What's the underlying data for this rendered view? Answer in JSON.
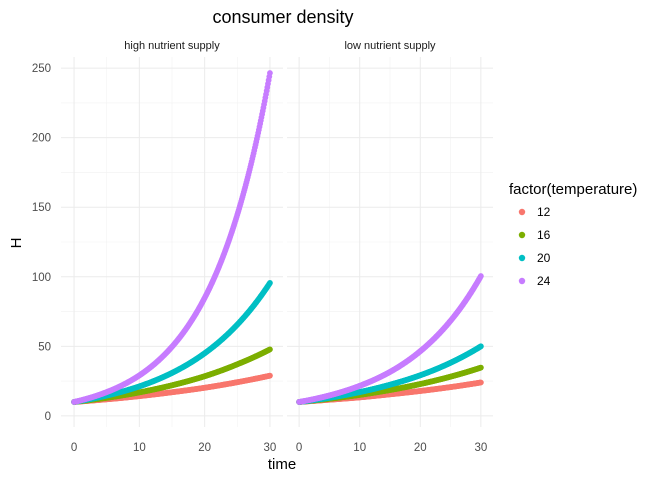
{
  "chart_data": {
    "type": "scatter",
    "title": "consumer density",
    "xlabel": "time",
    "ylabel": "H",
    "xlim": [
      -2,
      32
    ],
    "ylim": [
      -8,
      258
    ],
    "xticks": [
      0,
      10,
      20,
      30
    ],
    "yticks": [
      0,
      50,
      100,
      150,
      200,
      250
    ],
    "grid": true,
    "legend_title": "factor(temperature)",
    "legend_position": "right",
    "series_meta": [
      {
        "name": "12",
        "color": "#F8766D",
        "rate": 0.0353
      },
      {
        "name": "16",
        "color": "#7CAE00",
        "rate": 0.0522
      },
      {
        "name": "20",
        "color": "#00BFC4",
        "rate": 0.0753
      },
      {
        "name": "24",
        "color": "#C77CFF",
        "rate": 0.1068
      }
    ],
    "panels": [
      {
        "label": "high nutrient supply",
        "series": [
          {
            "name": "12",
            "x": [
              0,
              5,
              10,
              15,
              20,
              25,
              30
            ],
            "y": [
              10,
              11.9,
              14.2,
              17.0,
              20.2,
              24.2,
              28.9
            ]
          },
          {
            "name": "16",
            "x": [
              0,
              5,
              10,
              15,
              20,
              25,
              30
            ],
            "y": [
              10,
              13.0,
              16.9,
              22.0,
              28.5,
              37.1,
              47.8
            ]
          },
          {
            "name": "20",
            "x": [
              0,
              5,
              10,
              15,
              20,
              25,
              30
            ],
            "y": [
              10,
              14.6,
              21.2,
              30.9,
              45.0,
              65.6,
              95.6
            ]
          },
          {
            "name": "24",
            "x": [
              0,
              5,
              10,
              15,
              20,
              25,
              30
            ],
            "y": [
              10,
              17.1,
              29.1,
              49.7,
              84.8,
              144.6,
              246.5
            ]
          }
        ]
      },
      {
        "label": "low nutrient supply",
        "series": [
          {
            "name": "12",
            "x": [
              0,
              5,
              10,
              15,
              20,
              25,
              30
            ],
            "y": [
              10,
              11.6,
              13.3,
              15.5,
              17.9,
              20.7,
              24.0
            ]
          },
          {
            "name": "16",
            "x": [
              0,
              5,
              10,
              15,
              20,
              25,
              30
            ],
            "y": [
              10,
              12.3,
              15.1,
              18.6,
              22.9,
              28.2,
              34.7
            ]
          },
          {
            "name": "20",
            "x": [
              0,
              5,
              10,
              15,
              20,
              25,
              30
            ],
            "y": [
              10,
              13.0,
              17.1,
              22.4,
              29.2,
              38.2,
              50.0
            ]
          },
          {
            "name": "24",
            "x": [
              0,
              5,
              10,
              15,
              20,
              25,
              30
            ],
            "y": [
              10,
              14.7,
              21.6,
              31.6,
              46.5,
              68.4,
              100.5
            ]
          }
        ]
      }
    ]
  }
}
